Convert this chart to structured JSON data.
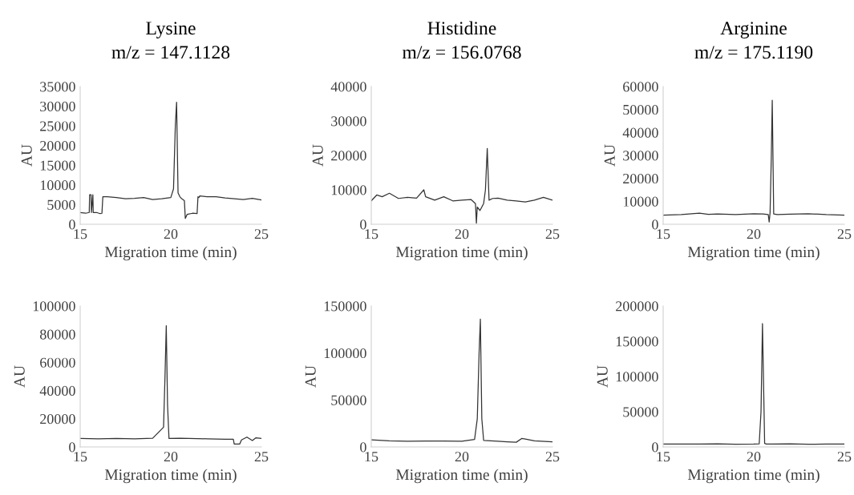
{
  "chart_data": [
    {
      "type": "line",
      "title": "Lysine",
      "subtitle": "m/z = 147.1128",
      "xlabel": "Migration time (min)",
      "ylabel": "AU",
      "xlim": [
        15,
        25
      ],
      "xticks": [
        15,
        20,
        25
      ],
      "ylim": [
        0,
        35000
      ],
      "yticks": [
        0,
        5000,
        10000,
        15000,
        20000,
        25000,
        30000,
        35000
      ],
      "grid": false,
      "x": [
        15,
        15.3,
        15.5,
        15.52,
        15.6,
        15.62,
        15.7,
        15.72,
        15.9,
        16.1,
        16.2,
        16.25,
        16.5,
        17,
        17.5,
        18,
        18.5,
        19,
        19.5,
        20,
        20.15,
        20.25,
        20.32,
        20.4,
        20.5,
        20.6,
        20.75,
        20.8,
        20.9,
        21.2,
        21.45,
        21.5,
        21.55,
        21.6,
        22,
        22.5,
        23,
        23.5,
        24,
        24.5,
        25
      ],
      "series": [
        {
          "color": "#333333",
          "values": [
            3000,
            2800,
            3000,
            7500,
            7500,
            3000,
            7500,
            3000,
            3000,
            2700,
            2800,
            7000,
            7000,
            6800,
            6500,
            6600,
            6800,
            6300,
            6500,
            6800,
            9000,
            25000,
            31000,
            8000,
            7000,
            6500,
            6000,
            1500,
            2500,
            2800,
            2700,
            7000,
            6800,
            7200,
            7000,
            7000,
            6700,
            6500,
            6300,
            6600,
            6200
          ]
        }
      ]
    },
    {
      "type": "line",
      "title": "Histidine",
      "subtitle": "m/z = 156.0768",
      "xlabel": "Migration time (min)",
      "ylabel": "AU",
      "xlim": [
        15,
        25
      ],
      "xticks": [
        15,
        20,
        25
      ],
      "ylim": [
        0,
        40000
      ],
      "yticks": [
        0,
        10000,
        20000,
        30000,
        40000
      ],
      "grid": false,
      "x": [
        15,
        15.3,
        15.6,
        16,
        16.5,
        17,
        17.5,
        17.9,
        18,
        18.5,
        19,
        19.5,
        20,
        20.5,
        20.75,
        20.8,
        20.85,
        21,
        21.2,
        21.3,
        21.4,
        21.5,
        21.7,
        22,
        22.5,
        23,
        23.5,
        24,
        24.5,
        25
      ],
      "series": [
        {
          "color": "#333333",
          "values": [
            6800,
            8500,
            8000,
            9000,
            7500,
            7800,
            7600,
            10000,
            8000,
            7000,
            8000,
            6800,
            7000,
            7200,
            6000,
            300,
            5000,
            4000,
            6000,
            10000,
            22000,
            7000,
            7500,
            7600,
            7000,
            6800,
            6500,
            7000,
            7800,
            7000
          ]
        }
      ]
    },
    {
      "type": "line",
      "title": "Arginine",
      "subtitle": "m/z = 175.1190",
      "xlabel": "Migration time (min)",
      "ylabel": "AU",
      "xlim": [
        15,
        25
      ],
      "xticks": [
        15,
        20,
        25
      ],
      "ylim": [
        0,
        60000
      ],
      "yticks": [
        0,
        10000,
        20000,
        30000,
        40000,
        50000,
        60000
      ],
      "grid": false,
      "x": [
        15,
        16,
        17,
        17.5,
        18,
        19,
        20,
        20.5,
        20.8,
        20.85,
        20.9,
        20.97,
        21.02,
        21.1,
        21.3,
        22,
        23,
        24,
        25
      ],
      "series": [
        {
          "color": "#333333",
          "values": [
            4000,
            4200,
            4800,
            4300,
            4500,
            4200,
            4600,
            4500,
            4200,
            1000,
            5000,
            30000,
            54000,
            4500,
            4200,
            4400,
            4600,
            4200,
            4000
          ]
        }
      ]
    },
    {
      "type": "line",
      "xlabel": "Migration time (min)",
      "ylabel": "AU",
      "xlim": [
        15,
        25
      ],
      "xticks": [
        15,
        20,
        25
      ],
      "ylim": [
        0,
        100000
      ],
      "yticks": [
        0,
        20000,
        40000,
        60000,
        80000,
        100000
      ],
      "grid": false,
      "x": [
        15,
        16,
        17,
        18,
        19,
        19.6,
        19.68,
        19.75,
        19.82,
        19.9,
        20.5,
        21,
        22,
        23,
        23.45,
        23.5,
        23.8,
        23.9,
        24.2,
        24.5,
        24.7,
        25
      ],
      "series": [
        {
          "color": "#333333",
          "values": [
            6000,
            5800,
            6000,
            5800,
            6200,
            14000,
            50000,
            86000,
            30000,
            6000,
            6200,
            6000,
            5800,
            5500,
            5500,
            2000,
            2000,
            5000,
            7000,
            4500,
            6500,
            6000
          ]
        }
      ]
    },
    {
      "type": "line",
      "xlabel": "Migration time (min)",
      "ylabel": "AU",
      "xlim": [
        15,
        25
      ],
      "xticks": [
        15,
        20,
        25
      ],
      "ylim": [
        0,
        150000
      ],
      "yticks": [
        0,
        50000,
        100000,
        150000
      ],
      "grid": false,
      "x": [
        15,
        16,
        17,
        18,
        19,
        20,
        20.7,
        20.85,
        20.95,
        21.02,
        21.1,
        21.2,
        22,
        22.5,
        23,
        23.3,
        23.5,
        24,
        25
      ],
      "series": [
        {
          "color": "#333333",
          "values": [
            7500,
            6500,
            6000,
            6200,
            6300,
            6000,
            8000,
            30000,
            100000,
            136000,
            30000,
            7000,
            6000,
            5500,
            5000,
            9000,
            8500,
            6500,
            5500
          ]
        }
      ]
    },
    {
      "type": "line",
      "xlabel": "Migration time (min)",
      "ylabel": "AU",
      "xlim": [
        15,
        25
      ],
      "xticks": [
        15,
        20,
        25
      ],
      "ylim": [
        0,
        200000
      ],
      "yticks": [
        0,
        50000,
        100000,
        150000,
        200000
      ],
      "grid": false,
      "x": [
        15,
        16,
        17,
        18,
        19,
        20,
        20.3,
        20.4,
        20.48,
        20.52,
        20.6,
        20.7,
        21,
        22,
        23,
        24,
        25
      ],
      "series": [
        {
          "color": "#333333",
          "values": [
            4000,
            4200,
            4000,
            4300,
            3900,
            4200,
            4500,
            50000,
            175000,
            120000,
            5000,
            4200,
            4000,
            4300,
            3800,
            4000,
            4200
          ]
        }
      ]
    }
  ]
}
